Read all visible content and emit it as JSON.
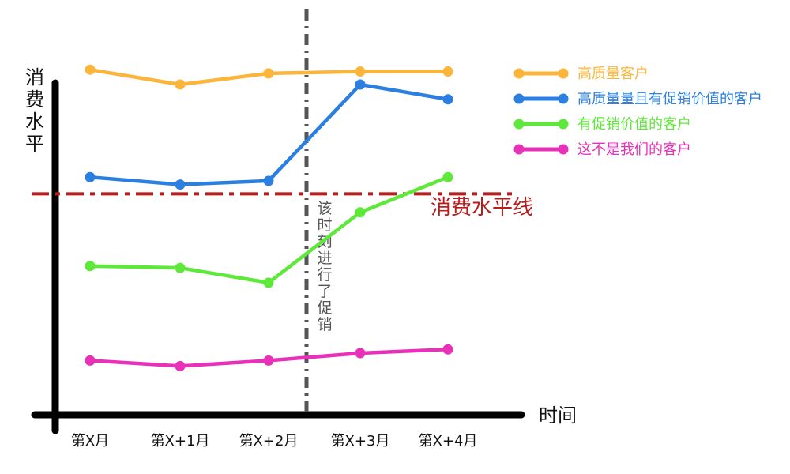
{
  "chart_data": {
    "type": "line",
    "title": "",
    "ylabel": "消费水平",
    "xlabel": "时间",
    "categories": [
      "第X月",
      "第X+1月",
      "第X+2月",
      "第X+3月",
      "第X+4月"
    ],
    "ylim": [
      0,
      100
    ],
    "grid": false,
    "legend_position": "top-right",
    "series": [
      {
        "name": "高质量客户",
        "color": "#FBB53A",
        "values": [
          91,
          87,
          90,
          90.5,
          90.5
        ]
      },
      {
        "name": "高质量量且有促销价值的客户",
        "color": "#2B7FE0",
        "values": [
          62,
          60,
          61,
          87,
          83
        ]
      },
      {
        "name": "有促销价值的客户",
        "color": "#5EE83A",
        "values": [
          38,
          37.5,
          33.5,
          52.5,
          62
        ]
      },
      {
        "name": "这不是我们的客户",
        "color": "#E830B8",
        "values": [
          12.5,
          11,
          12.5,
          14.5,
          15.5
        ]
      }
    ],
    "threshold": {
      "label": "消费水平线",
      "value": 57.5,
      "color": "#B81C1C"
    },
    "event": {
      "label": "该时刻进行了促销",
      "x_between": [
        "第X+2月",
        "第X+3月"
      ],
      "color": "#555555"
    }
  }
}
